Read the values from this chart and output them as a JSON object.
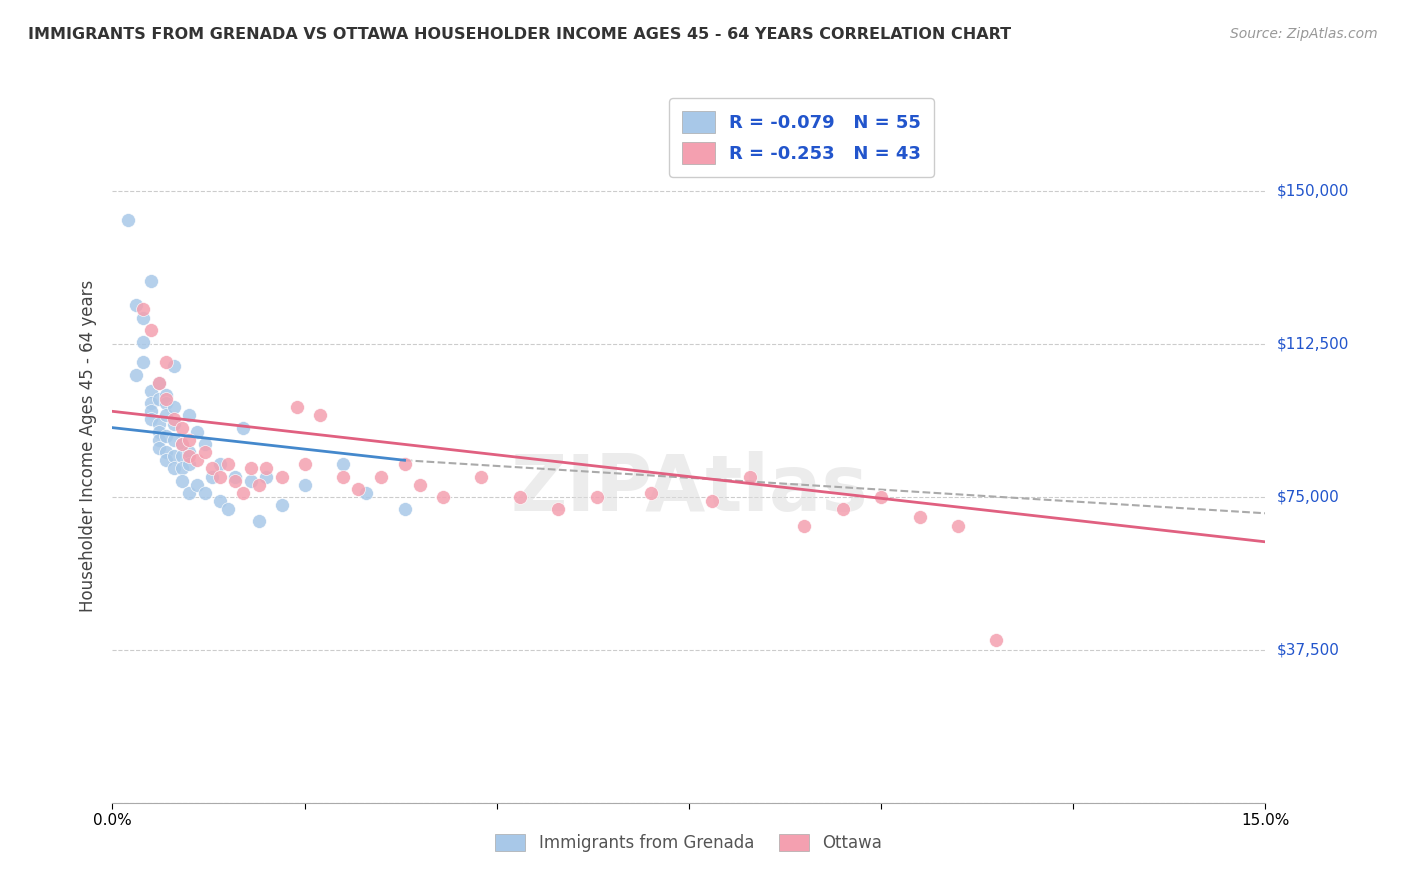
{
  "title": "IMMIGRANTS FROM GRENADA VS OTTAWA HOUSEHOLDER INCOME AGES 45 - 64 YEARS CORRELATION CHART",
  "source": "Source: ZipAtlas.com",
  "ylabel": "Householder Income Ages 45 - 64 years",
  "xlim": [
    0.0,
    0.15
  ],
  "ylim": [
    0,
    175000
  ],
  "yticks": [
    0,
    37500,
    75000,
    112500,
    150000
  ],
  "ytick_labels": [
    "",
    "$37,500",
    "$75,000",
    "$112,500",
    "$150,000"
  ],
  "xticks": [
    0.0,
    0.025,
    0.05,
    0.075,
    0.1,
    0.125,
    0.15
  ],
  "xtick_labels": [
    "0.0%",
    "",
    "",
    "",
    "",
    "",
    "15.0%"
  ],
  "legend_r1": "-0.079",
  "legend_n1": "55",
  "legend_r2": "-0.253",
  "legend_n2": "43",
  "legend_label1": "Immigrants from Grenada",
  "legend_label2": "Ottawa",
  "blue_color": "#a8c8e8",
  "pink_color": "#f4a0b0",
  "blue_line_color": "#4488cc",
  "pink_line_color": "#e06080",
  "dashed_line_color": "#aaaaaa",
  "legend_text_color": "#2255cc",
  "axis_color": "#2255cc",
  "title_color": "#333333",
  "background_color": "#ffffff",
  "grenada_x": [
    0.002,
    0.003,
    0.003,
    0.004,
    0.004,
    0.004,
    0.005,
    0.005,
    0.005,
    0.005,
    0.005,
    0.006,
    0.006,
    0.006,
    0.006,
    0.006,
    0.006,
    0.007,
    0.007,
    0.007,
    0.007,
    0.007,
    0.007,
    0.008,
    0.008,
    0.008,
    0.008,
    0.008,
    0.008,
    0.009,
    0.009,
    0.009,
    0.009,
    0.01,
    0.01,
    0.01,
    0.01,
    0.011,
    0.011,
    0.012,
    0.012,
    0.013,
    0.014,
    0.014,
    0.015,
    0.016,
    0.017,
    0.018,
    0.019,
    0.02,
    0.022,
    0.025,
    0.03,
    0.033,
    0.038
  ],
  "grenada_y": [
    143000,
    105000,
    122000,
    119000,
    113000,
    108000,
    101000,
    98000,
    96000,
    94000,
    128000,
    93000,
    91000,
    89000,
    87000,
    99000,
    103000,
    100000,
    98000,
    95000,
    90000,
    86000,
    84000,
    97000,
    93000,
    89000,
    85000,
    82000,
    107000,
    88000,
    85000,
    82000,
    79000,
    86000,
    83000,
    95000,
    76000,
    91000,
    78000,
    88000,
    76000,
    80000,
    83000,
    74000,
    72000,
    80000,
    92000,
    79000,
    69000,
    80000,
    73000,
    78000,
    83000,
    76000,
    72000
  ],
  "ottawa_x": [
    0.004,
    0.005,
    0.006,
    0.007,
    0.007,
    0.008,
    0.009,
    0.009,
    0.01,
    0.01,
    0.011,
    0.012,
    0.013,
    0.014,
    0.015,
    0.016,
    0.017,
    0.018,
    0.019,
    0.02,
    0.022,
    0.024,
    0.025,
    0.027,
    0.03,
    0.032,
    0.035,
    0.038,
    0.04,
    0.043,
    0.048,
    0.053,
    0.058,
    0.063,
    0.07,
    0.078,
    0.083,
    0.09,
    0.095,
    0.1,
    0.105,
    0.11,
    0.115
  ],
  "ottawa_y": [
    121000,
    116000,
    103000,
    99000,
    108000,
    94000,
    92000,
    88000,
    89000,
    85000,
    84000,
    86000,
    82000,
    80000,
    83000,
    79000,
    76000,
    82000,
    78000,
    82000,
    80000,
    97000,
    83000,
    95000,
    80000,
    77000,
    80000,
    83000,
    78000,
    75000,
    80000,
    75000,
    72000,
    75000,
    76000,
    74000,
    80000,
    68000,
    72000,
    75000,
    70000,
    68000,
    40000
  ],
  "blue_trendline_x": [
    0.0,
    0.038
  ],
  "blue_trendline_y": [
    92000,
    84000
  ],
  "pink_trendline_x": [
    0.0,
    0.15
  ],
  "pink_trendline_y": [
    96000,
    64000
  ],
  "dashed_trendline_x": [
    0.038,
    0.15
  ],
  "dashed_trendline_y": [
    84000,
    71000
  ]
}
